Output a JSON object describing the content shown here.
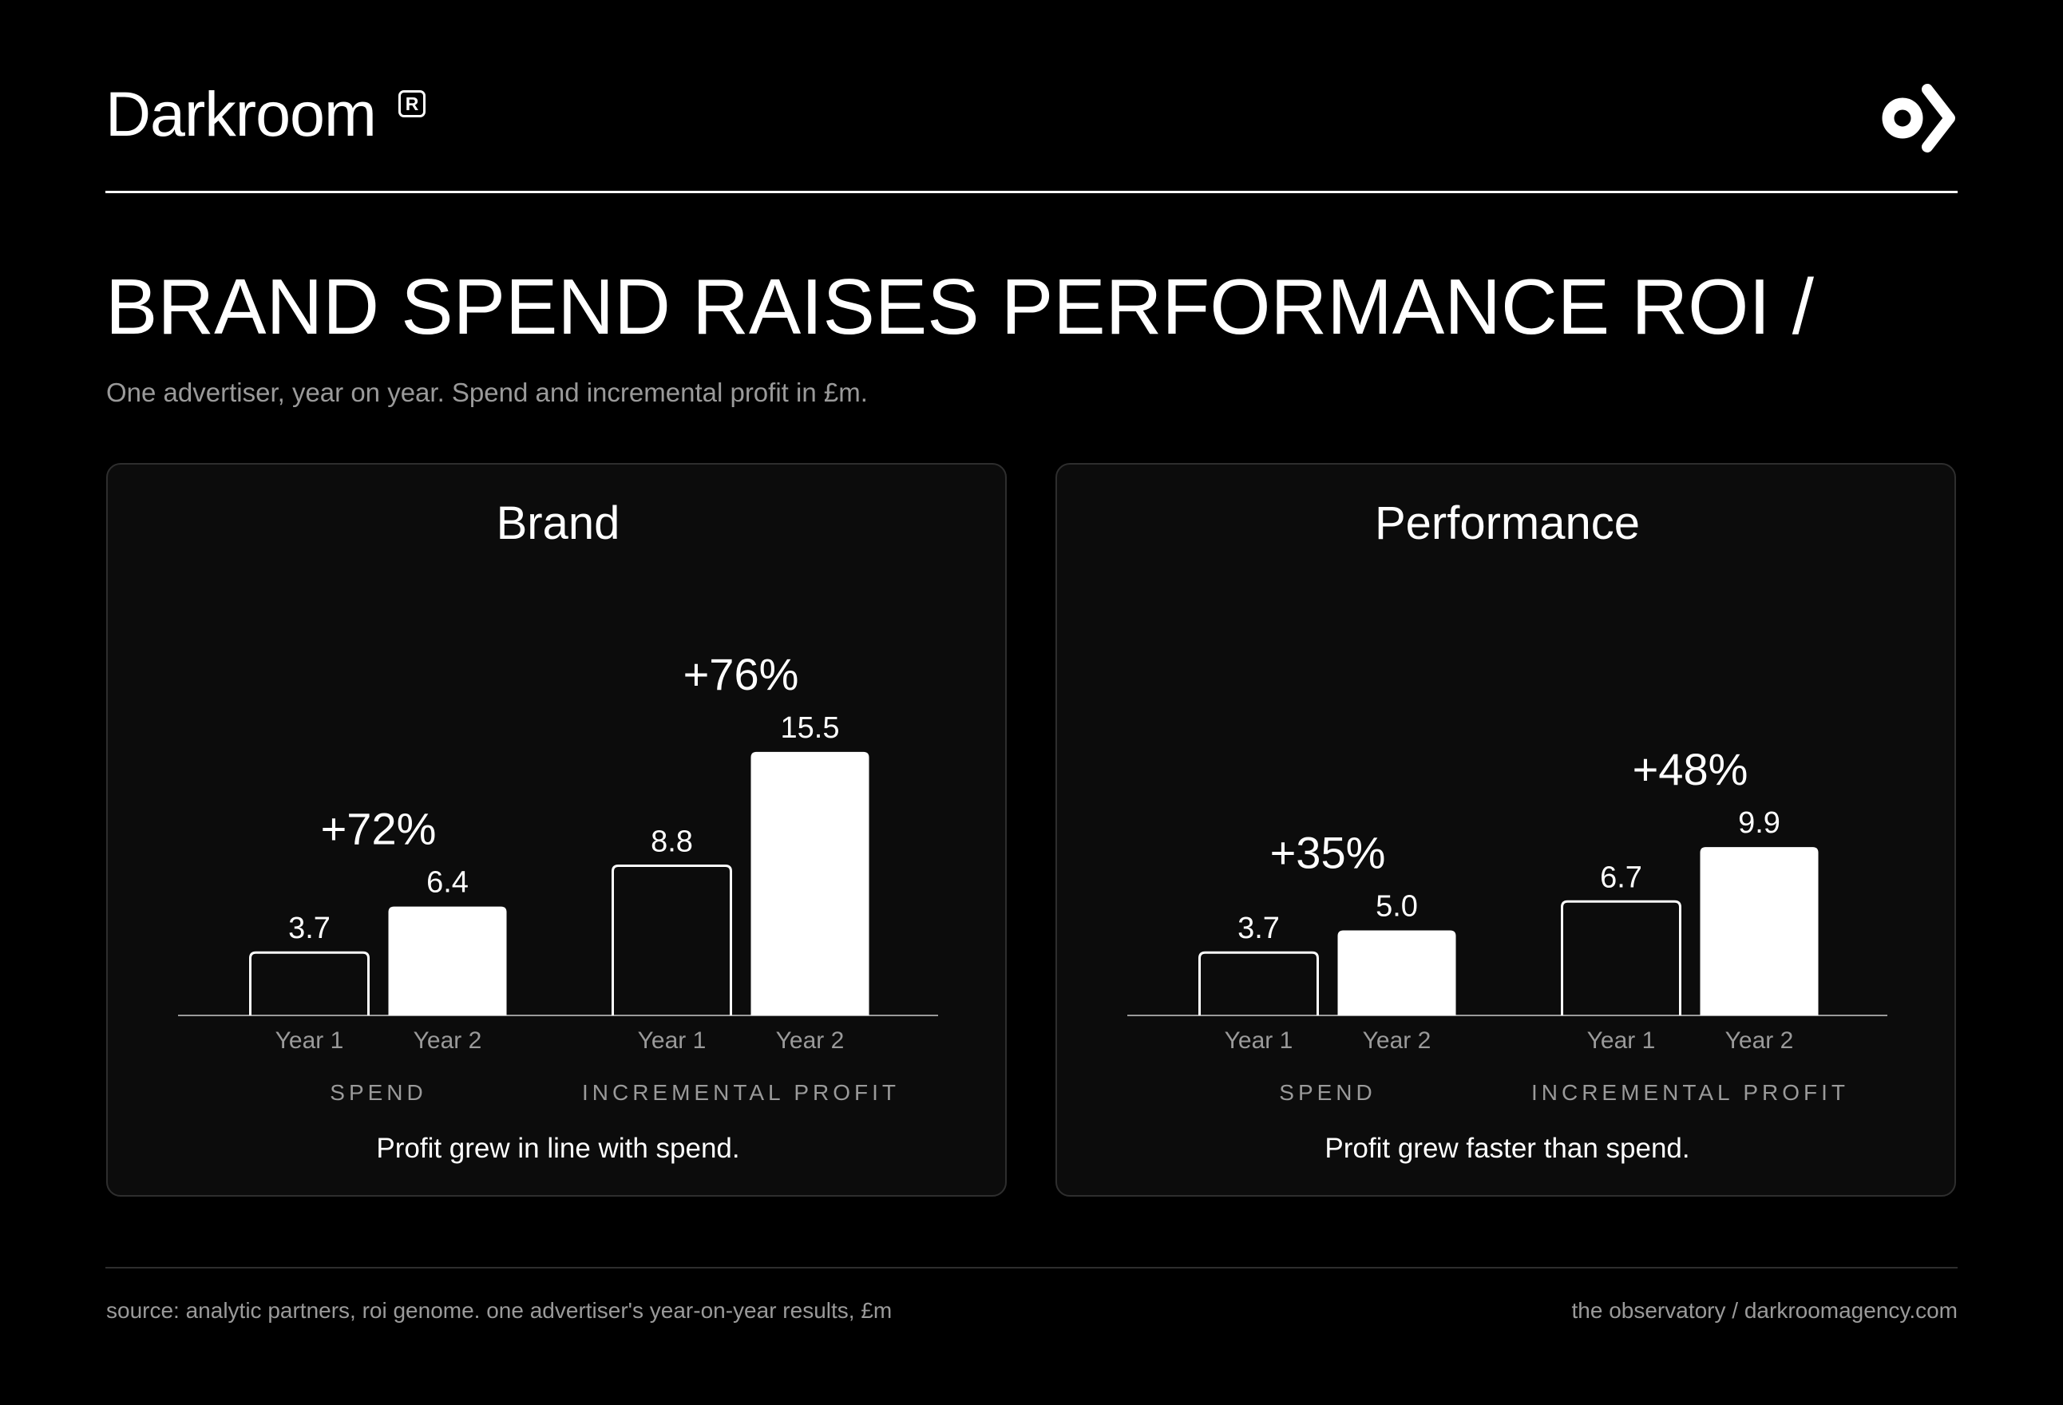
{
  "brand": {
    "name": "Darkroom",
    "registered_mark": "R"
  },
  "header": {
    "title": "BRAND SPEND RAISES PERFORMANCE ROI /",
    "subtitle": "One advertiser, year on year. Spend and incremental profit in £m."
  },
  "colors": {
    "background": "#000000",
    "panel": "#0c0c0c",
    "bar_fill": "#ffffff",
    "muted_text": "#9a9a9a"
  },
  "icons": {
    "corner": "darkroom-o-chevron-icon"
  },
  "chart_data": [
    {
      "type": "bar",
      "title": "Brand",
      "categories": [
        "Year 1",
        "Year 2"
      ],
      "groups": [
        {
          "label": "SPEND",
          "values": [
            3.7,
            6.4
          ],
          "value_labels": [
            "3.7",
            "6.4"
          ],
          "change": "+72%"
        },
        {
          "label": "INCREMENTAL PROFIT",
          "values": [
            8.8,
            15.5
          ],
          "value_labels": [
            "8.8",
            "15.5"
          ],
          "change": "+76%"
        }
      ],
      "ylim": [
        0,
        20
      ],
      "grid": false,
      "style": "Year 1 outlined, Year 2 solid white",
      "caption": "Profit grew in line with spend."
    },
    {
      "type": "bar",
      "title": "Performance",
      "categories": [
        "Year 1",
        "Year 2"
      ],
      "groups": [
        {
          "label": "SPEND",
          "values": [
            3.7,
            5.0
          ],
          "value_labels": [
            "3.7",
            "5.0"
          ],
          "change": "+35%"
        },
        {
          "label": "INCREMENTAL PROFIT",
          "values": [
            6.7,
            9.9
          ],
          "value_labels": [
            "6.7",
            "9.9"
          ],
          "change": "+48%"
        }
      ],
      "ylim": [
        0,
        20
      ],
      "grid": false,
      "style": "Year 1 outlined, Year 2 solid white",
      "caption": "Profit grew faster than spend."
    }
  ],
  "footer": {
    "source": "source: analytic partners, roi genome. one advertiser's year-on-year results, £m",
    "credit": "the observatory / darkroomagency.com"
  }
}
